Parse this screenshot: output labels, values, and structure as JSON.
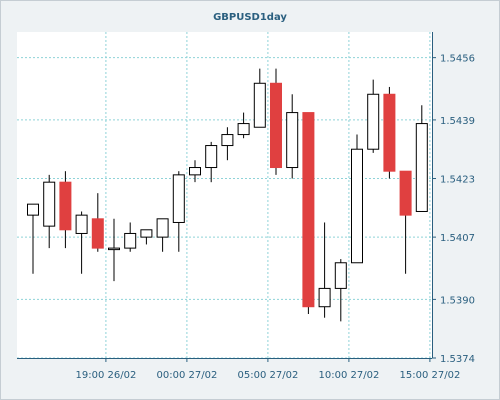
{
  "chart_data": {
    "type": "candlestick",
    "title": "GBPUSD1day",
    "xlabel": "",
    "ylabel": "",
    "ylim": [
      1.5374,
      1.5463
    ],
    "y_ticks": [
      1.5456,
      1.5439,
      1.5423,
      1.5407,
      1.539,
      1.5374
    ],
    "y_tick_labels": [
      "1.5456",
      "1.5439",
      "1.5423",
      "1.5407",
      "1.5390",
      "1.5374"
    ],
    "x_ticks": [
      {
        "label": "19:00 26/02",
        "index": 4.5
      },
      {
        "label": "00:00 27/02",
        "index": 9.5
      },
      {
        "label": "05:00 27/02",
        "index": 14.5
      },
      {
        "label": "10:00 27/02",
        "index": 19.5
      },
      {
        "label": "15:00 27/02",
        "index": 24.5
      }
    ],
    "grid": true,
    "colors": {
      "up": "#ffffff",
      "down": "#e04040",
      "outline": "#000000",
      "grid": "#8fd3d8",
      "axis": "#2a5f7f"
    },
    "candles": [
      {
        "open": 1.5413,
        "close": 1.5416,
        "high": 1.5416,
        "low": 1.5397
      },
      {
        "open": 1.541,
        "close": 1.5422,
        "high": 1.5424,
        "low": 1.5404
      },
      {
        "open": 1.5422,
        "close": 1.5409,
        "high": 1.5425,
        "low": 1.5404
      },
      {
        "open": 1.5408,
        "close": 1.5413,
        "high": 1.5414,
        "low": 1.5397
      },
      {
        "open": 1.5412,
        "close": 1.5404,
        "high": 1.5419,
        "low": 1.5403
      },
      {
        "open": 1.5404,
        "close": 1.5404,
        "high": 1.5412,
        "low": 1.5395
      },
      {
        "open": 1.5404,
        "close": 1.5408,
        "high": 1.5411,
        "low": 1.5403
      },
      {
        "open": 1.5407,
        "close": 1.5409,
        "high": 1.5409,
        "low": 1.5405
      },
      {
        "open": 1.5407,
        "close": 1.5412,
        "high": 1.5412,
        "low": 1.5403
      },
      {
        "open": 1.5411,
        "close": 1.5424,
        "high": 1.5425,
        "low": 1.5403
      },
      {
        "open": 1.5424,
        "close": 1.5426,
        "high": 1.5428,
        "low": 1.5422
      },
      {
        "open": 1.5426,
        "close": 1.5432,
        "high": 1.5433,
        "low": 1.5422
      },
      {
        "open": 1.5432,
        "close": 1.5435,
        "high": 1.5437,
        "low": 1.5428
      },
      {
        "open": 1.5435,
        "close": 1.5438,
        "high": 1.5441,
        "low": 1.5434
      },
      {
        "open": 1.5437,
        "close": 1.5449,
        "high": 1.5453,
        "low": 1.5437
      },
      {
        "open": 1.5449,
        "close": 1.5426,
        "high": 1.5453,
        "low": 1.5424
      },
      {
        "open": 1.5426,
        "close": 1.5441,
        "high": 1.5446,
        "low": 1.5423
      },
      {
        "open": 1.5441,
        "close": 1.5388,
        "high": 1.5441,
        "low": 1.5386
      },
      {
        "open": 1.5388,
        "close": 1.5393,
        "high": 1.5411,
        "low": 1.5385
      },
      {
        "open": 1.5393,
        "close": 1.54,
        "high": 1.5401,
        "low": 1.5384
      },
      {
        "open": 1.54,
        "close": 1.5431,
        "high": 1.5435,
        "low": 1.54
      },
      {
        "open": 1.5431,
        "close": 1.5446,
        "high": 1.545,
        "low": 1.543
      },
      {
        "open": 1.5446,
        "close": 1.5425,
        "high": 1.5448,
        "low": 1.5423
      },
      {
        "open": 1.5425,
        "close": 1.5413,
        "high": 1.5425,
        "low": 1.5397
      },
      {
        "open": 1.5414,
        "close": 1.5438,
        "high": 1.5443,
        "low": 1.5414
      }
    ]
  }
}
